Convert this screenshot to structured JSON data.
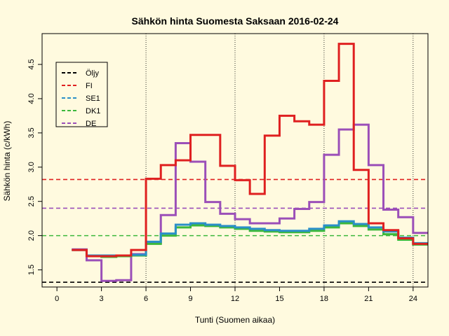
{
  "chart_data": {
    "type": "line",
    "title": "Sähkön hinta Suomesta Saksaan 2016-02-24",
    "xlabel": "Tunti (Suomen aikaa)",
    "ylabel": "Sähkön hinta (c/kWh)",
    "xlim": [
      -1,
      25
    ],
    "ylim": [
      1.25,
      4.95
    ],
    "xticks": [
      0,
      3,
      6,
      9,
      12,
      15,
      18,
      21,
      24
    ],
    "yticks": [
      1.5,
      2.0,
      2.5,
      3.0,
      3.5,
      4.0,
      4.5
    ],
    "step": true,
    "vlines": [
      6,
      12,
      18,
      24
    ],
    "legend_position": "top-left",
    "legend": [
      "Öljy",
      "FI",
      "SE1",
      "DK1",
      "DE"
    ],
    "colors": {
      "Öljy": "#000000",
      "FI": "#df2020",
      "SE1": "#2a8fc8",
      "DK1": "#3cb83c",
      "DE": "#9b4fb8"
    },
    "hours": [
      1,
      2,
      3,
      4,
      5,
      6,
      7,
      8,
      9,
      10,
      11,
      12,
      13,
      14,
      15,
      16,
      17,
      18,
      19,
      20,
      21,
      22,
      23,
      24,
      25
    ],
    "series": [
      {
        "name": "Öljy",
        "hline": 1.32
      },
      {
        "name": "FI",
        "hline": 2.82,
        "values": [
          1.79,
          1.7,
          1.7,
          1.71,
          1.79,
          2.83,
          3.03,
          3.1,
          3.47,
          3.47,
          3.02,
          2.81,
          2.61,
          3.46,
          3.75,
          3.67,
          3.62,
          4.26,
          4.8,
          2.96,
          2.18,
          2.08,
          1.96,
          1.88
        ]
      },
      {
        "name": "SE1",
        "values": [
          1.79,
          1.71,
          1.71,
          1.71,
          1.72,
          1.91,
          2.03,
          2.16,
          2.18,
          2.16,
          2.14,
          2.12,
          2.1,
          2.08,
          2.07,
          2.07,
          2.1,
          2.15,
          2.21,
          2.17,
          2.12,
          2.06,
          1.97,
          1.89
        ]
      },
      {
        "name": "DK1",
        "hline": 2.0,
        "values": [
          1.79,
          1.7,
          1.69,
          1.7,
          1.71,
          1.88,
          2.0,
          2.12,
          2.15,
          2.14,
          2.12,
          2.1,
          2.07,
          2.06,
          2.05,
          2.05,
          2.07,
          2.12,
          2.18,
          2.14,
          2.09,
          2.02,
          1.94,
          1.87
        ]
      },
      {
        "name": "DE",
        "hline": 2.4,
        "values": [
          1.8,
          1.64,
          1.34,
          1.35,
          1.73,
          1.89,
          2.3,
          3.35,
          3.08,
          2.49,
          2.32,
          2.24,
          2.18,
          2.18,
          2.25,
          2.39,
          2.49,
          3.18,
          3.55,
          3.62,
          3.03,
          2.38,
          2.27,
          2.04
        ]
      }
    ]
  }
}
